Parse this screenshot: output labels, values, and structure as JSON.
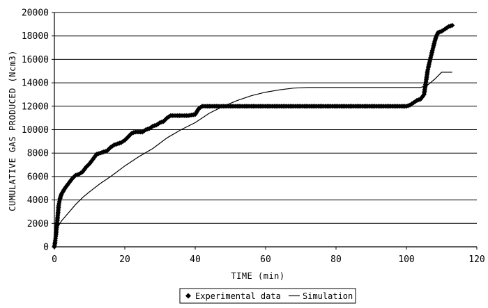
{
  "chart_data": {
    "type": "scatter",
    "xlabel": "TIME (min)",
    "ylabel": "CUMULATIVE GAS PRODUCED (Ncm3)",
    "xlim": [
      0,
      120
    ],
    "ylim": [
      0,
      20000
    ],
    "x_ticks": [
      "0",
      "20",
      "40",
      "60",
      "80",
      "100",
      "120"
    ],
    "y_ticks": [
      "0",
      "2000",
      "4000",
      "6000",
      "8000",
      "10000",
      "12000",
      "14000",
      "16000",
      "18000",
      "20000"
    ],
    "grid": "horizontal",
    "legend_position": "bottom",
    "series": [
      {
        "name": "Experimental data",
        "kind": "scatter",
        "color": "#000000",
        "points": [
          [
            0,
            0
          ],
          [
            0.2,
            400
          ],
          [
            0.4,
            900
          ],
          [
            0.6,
            1500
          ],
          [
            0.8,
            2100
          ],
          [
            1.0,
            2800
          ],
          [
            1.2,
            3500
          ],
          [
            1.5,
            4000
          ],
          [
            2,
            4500
          ],
          [
            3,
            5000
          ],
          [
            4,
            5400
          ],
          [
            5,
            5800
          ],
          [
            6,
            6100
          ],
          [
            7,
            6200
          ],
          [
            8,
            6400
          ],
          [
            9,
            6800
          ],
          [
            10,
            7100
          ],
          [
            11,
            7500
          ],
          [
            12,
            7900
          ],
          [
            13,
            8000
          ],
          [
            14,
            8100
          ],
          [
            15,
            8200
          ],
          [
            16,
            8500
          ],
          [
            17,
            8700
          ],
          [
            18,
            8800
          ],
          [
            19,
            8900
          ],
          [
            20,
            9100
          ],
          [
            21,
            9400
          ],
          [
            22,
            9700
          ],
          [
            23,
            9800
          ],
          [
            24,
            9800
          ],
          [
            25,
            9800
          ],
          [
            26,
            10000
          ],
          [
            27,
            10100
          ],
          [
            28,
            10300
          ],
          [
            29,
            10400
          ],
          [
            30,
            10600
          ],
          [
            31,
            10700
          ],
          [
            32,
            11000
          ],
          [
            33,
            11200
          ],
          [
            34,
            11200
          ],
          [
            36,
            11200
          ],
          [
            38,
            11200
          ],
          [
            40,
            11300
          ],
          [
            41,
            11800
          ],
          [
            42,
            12000
          ],
          [
            45,
            12000
          ],
          [
            50,
            12000
          ],
          [
            55,
            12000
          ],
          [
            60,
            12000
          ],
          [
            65,
            12000
          ],
          [
            70,
            12000
          ],
          [
            75,
            12000
          ],
          [
            80,
            12000
          ],
          [
            85,
            12000
          ],
          [
            90,
            12000
          ],
          [
            95,
            12000
          ],
          [
            100,
            12000
          ],
          [
            101,
            12100
          ],
          [
            102,
            12300
          ],
          [
            103,
            12500
          ],
          [
            104,
            12600
          ],
          [
            105,
            13000
          ],
          [
            105.5,
            14000
          ],
          [
            106,
            15000
          ],
          [
            106.5,
            15700
          ],
          [
            107,
            16300
          ],
          [
            107.5,
            16900
          ],
          [
            108,
            17500
          ],
          [
            108.5,
            18000
          ],
          [
            109,
            18300
          ],
          [
            110,
            18400
          ],
          [
            111,
            18600
          ],
          [
            112,
            18800
          ],
          [
            113,
            18900
          ]
        ]
      },
      {
        "name": "Simulation",
        "kind": "line",
        "color": "#000000",
        "points": [
          [
            0,
            0
          ],
          [
            0.5,
            1200
          ],
          [
            1,
            1700
          ],
          [
            2,
            2200
          ],
          [
            4,
            2900
          ],
          [
            6,
            3600
          ],
          [
            8,
            4200
          ],
          [
            10,
            4700
          ],
          [
            13,
            5400
          ],
          [
            16,
            6000
          ],
          [
            20,
            6900
          ],
          [
            24,
            7700
          ],
          [
            28,
            8400
          ],
          [
            32,
            9300
          ],
          [
            36,
            10000
          ],
          [
            40,
            10600
          ],
          [
            44,
            11400
          ],
          [
            48,
            12000
          ],
          [
            52,
            12500
          ],
          [
            56,
            12900
          ],
          [
            60,
            13200
          ],
          [
            64,
            13400
          ],
          [
            68,
            13550
          ],
          [
            72,
            13600
          ],
          [
            80,
            13600
          ],
          [
            90,
            13600
          ],
          [
            100,
            13600
          ],
          [
            104,
            13600
          ],
          [
            106,
            13800
          ],
          [
            108,
            14300
          ],
          [
            110,
            14900
          ],
          [
            113,
            14900
          ]
        ]
      }
    ]
  }
}
